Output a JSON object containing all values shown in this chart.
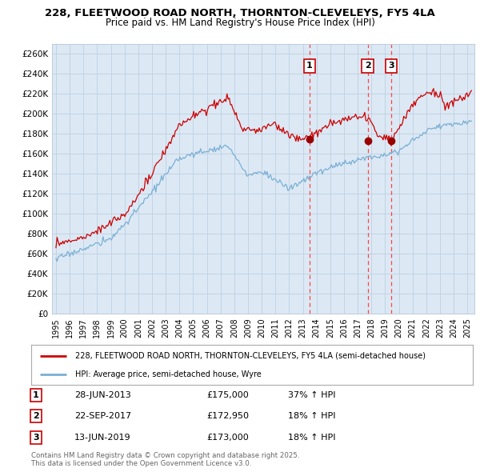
{
  "title": "228, FLEETWOOD ROAD NORTH, THORNTON-CLEVELEYS, FY5 4LA",
  "subtitle": "Price paid vs. HM Land Registry's House Price Index (HPI)",
  "ylabel_ticks": [
    "£0",
    "£20K",
    "£40K",
    "£60K",
    "£80K",
    "£100K",
    "£120K",
    "£140K",
    "£160K",
    "£180K",
    "£200K",
    "£220K",
    "£240K",
    "£260K"
  ],
  "ytick_values": [
    0,
    20000,
    40000,
    60000,
    80000,
    100000,
    120000,
    140000,
    160000,
    180000,
    200000,
    220000,
    240000,
    260000
  ],
  "ylim": [
    0,
    270000
  ],
  "xlim_start": 1994.7,
  "xlim_end": 2025.5,
  "house_color": "#cc0000",
  "hpi_color": "#7bafd4",
  "chart_bg": "#dce9f5",
  "sale_markers": [
    {
      "date": 2013.49,
      "price": 175000,
      "label": "1"
    },
    {
      "date": 2017.73,
      "price": 172950,
      "label": "2"
    },
    {
      "date": 2019.45,
      "price": 173000,
      "label": "3"
    }
  ],
  "sale_dot_color": "#990000",
  "vline_color": "#ff4444",
  "legend_house": "228, FLEETWOOD ROAD NORTH, THORNTON-CLEVELEYS, FY5 4LA (semi-detached house)",
  "legend_hpi": "HPI: Average price, semi-detached house, Wyre",
  "table_rows": [
    {
      "num": "1",
      "date": "28-JUN-2013",
      "price": "£175,000",
      "change": "37% ↑ HPI"
    },
    {
      "num": "2",
      "date": "22-SEP-2017",
      "price": "£172,950",
      "change": "18% ↑ HPI"
    },
    {
      "num": "3",
      "date": "13-JUN-2019",
      "price": "£173,000",
      "change": "18% ↑ HPI"
    }
  ],
  "footnote": "Contains HM Land Registry data © Crown copyright and database right 2025.\nThis data is licensed under the Open Government Licence v3.0.",
  "background_color": "#ffffff",
  "grid_color": "#c0cfe0"
}
